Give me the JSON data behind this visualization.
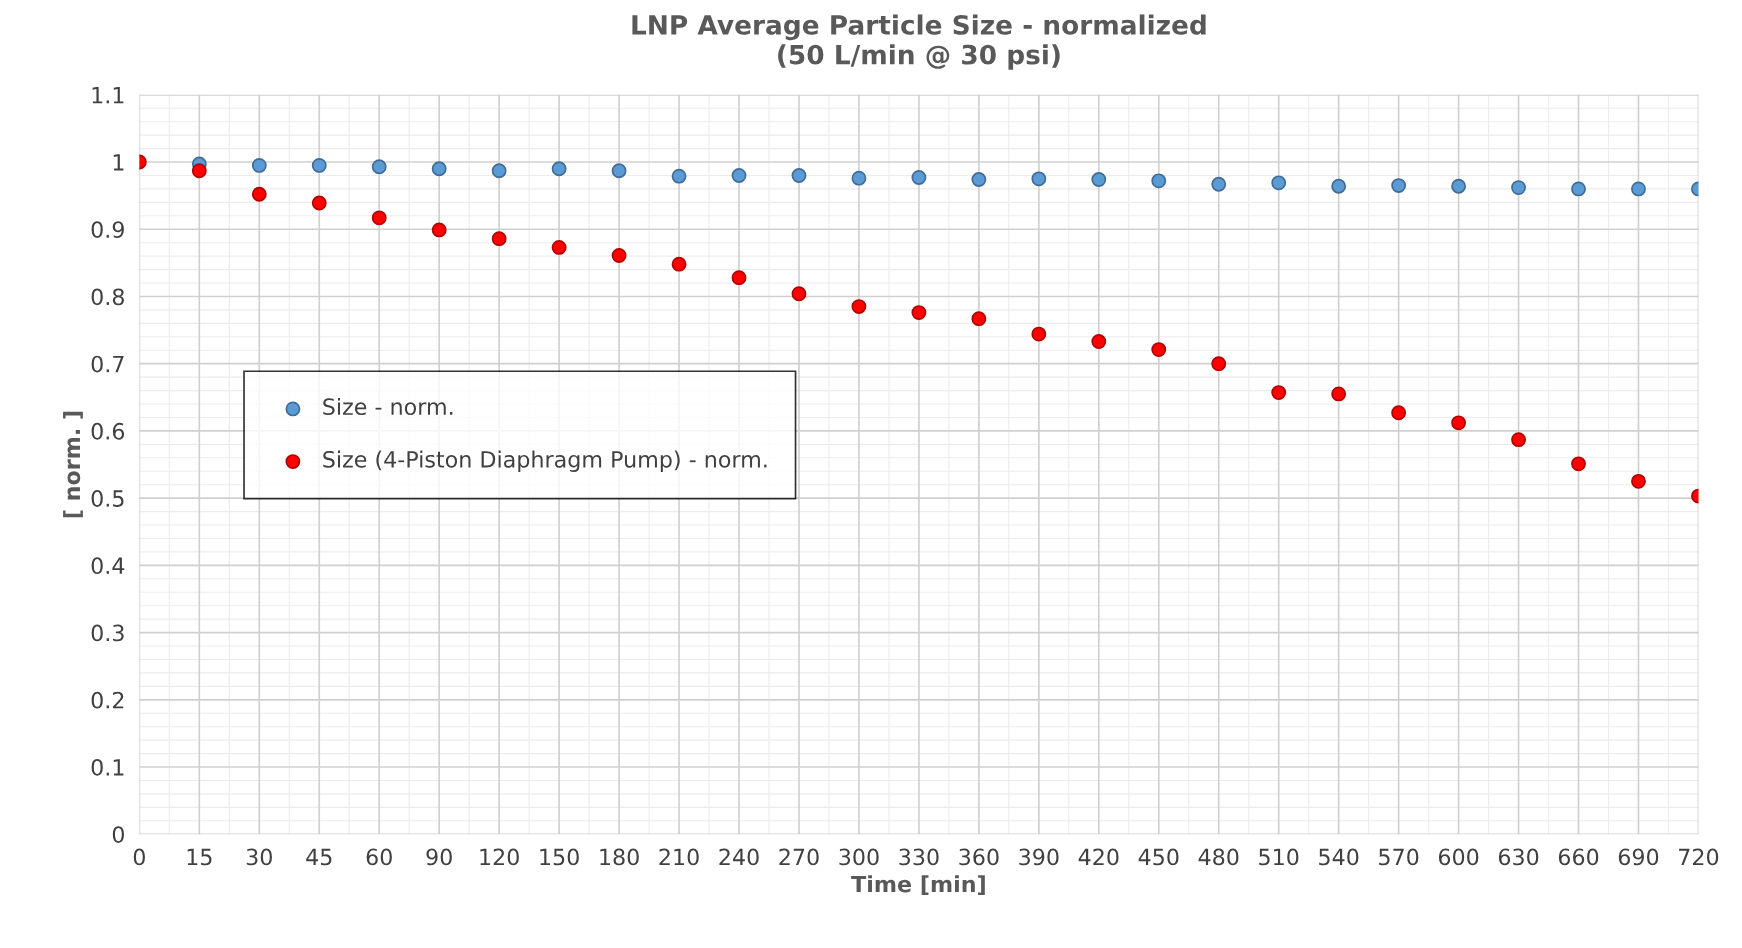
{
  "chart_data": {
    "type": "scatter",
    "title": "LNP Average Particle Size - normalized\n(50 L/min @ 30 psi)",
    "xlabel": "Time [min]",
    "ylabel": "[ norm. ]",
    "categories": [
      "0",
      "15",
      "30",
      "45",
      "60",
      "90",
      "120",
      "150",
      "180",
      "210",
      "240",
      "270",
      "300",
      "330",
      "360",
      "390",
      "420",
      "450",
      "480",
      "510",
      "540",
      "570",
      "600",
      "630",
      "660",
      "690",
      "720"
    ],
    "series": [
      {
        "name": "Size - norm.",
        "color": "#5b9bd5",
        "values": [
          null,
          0.997,
          0.995,
          0.995,
          0.993,
          0.99,
          0.987,
          0.99,
          0.987,
          0.979,
          0.98,
          0.98,
          0.976,
          0.977,
          0.974,
          0.975,
          0.974,
          0.972,
          0.967,
          0.969,
          0.964,
          0.965,
          0.964,
          0.962,
          0.96,
          0.96,
          0.96
        ]
      },
      {
        "name": "Size (4-Piston Diaphragm Pump) - norm.",
        "color": "#ff0000",
        "values": [
          1.0,
          0.987,
          0.952,
          0.939,
          0.917,
          0.899,
          0.886,
          0.873,
          0.861,
          0.848,
          0.828,
          0.804,
          0.785,
          0.776,
          0.767,
          0.744,
          0.733,
          0.721,
          0.7,
          0.657,
          0.655,
          0.627,
          0.612,
          0.587,
          0.551,
          0.525,
          0.503
        ]
      }
    ],
    "ylim": [
      0,
      1.1
    ],
    "yticks": [
      0,
      0.1,
      0.2,
      0.3,
      0.4,
      0.5,
      0.6,
      0.7,
      0.8,
      0.9,
      1,
      1.1
    ],
    "grid": true,
    "legend": "center left",
    "marker": "circle"
  }
}
